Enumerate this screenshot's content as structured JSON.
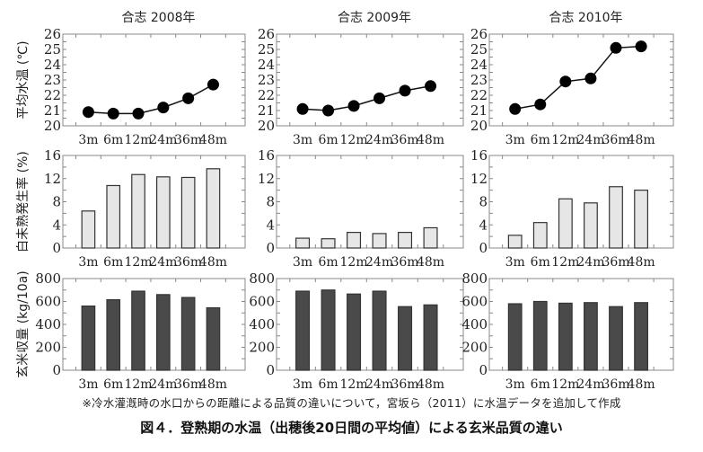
{
  "figure": {
    "note": "※冷水灌漑時の水口からの距離による品質の違いについて，宮坂ら（2011）に水温データを追加して作成",
    "caption": "図４．登熟期の水温（出穂後20日間の平均値）による玄米品質の違い"
  },
  "colors": {
    "line": "#111111",
    "marker": "#000000",
    "bar_light": "#e6e6e6",
    "bar_dark": "#4a4a4a",
    "axis": "#888888"
  },
  "chart_data": [
    {
      "type": "line",
      "title": "合志  2008年",
      "row": "water_temp",
      "ylabel": "平均水温 (℃)",
      "categories": [
        "3m",
        "6m",
        "12m",
        "24m",
        "36m",
        "48m"
      ],
      "values": [
        20.9,
        20.8,
        20.8,
        21.2,
        21.8,
        22.7
      ],
      "ylim": [
        20,
        26
      ],
      "yticks": [
        20,
        21,
        22,
        23,
        24,
        25,
        26
      ]
    },
    {
      "type": "line",
      "title": "合志  2009年",
      "row": "water_temp",
      "ylabel": "",
      "categories": [
        "3m",
        "6m",
        "12m",
        "24m",
        "36m",
        "48m"
      ],
      "values": [
        21.1,
        21.0,
        21.3,
        21.8,
        22.3,
        22.6
      ],
      "ylim": [
        20,
        26
      ],
      "yticks": [
        20,
        21,
        22,
        23,
        24,
        25,
        26
      ]
    },
    {
      "type": "line",
      "title": "合志  2010年",
      "row": "water_temp",
      "ylabel": "",
      "categories": [
        "3m",
        "6m",
        "12m",
        "24m",
        "36m",
        "48m"
      ],
      "values": [
        21.1,
        21.4,
        22.9,
        23.1,
        25.1,
        25.2
      ],
      "ylim": [
        20,
        26
      ],
      "yticks": [
        20,
        21,
        22,
        23,
        24,
        25,
        26
      ]
    },
    {
      "type": "bar",
      "title": "",
      "row": "white_immature",
      "ylabel": "白未熟発生率 (%)",
      "categories": [
        "3m",
        "6m",
        "12m",
        "24m",
        "36m",
        "48m"
      ],
      "values": [
        6.4,
        10.8,
        12.7,
        12.3,
        12.2,
        13.7
      ],
      "ylim": [
        0,
        16
      ],
      "yticks": [
        0,
        4,
        8,
        12,
        16
      ]
    },
    {
      "type": "bar",
      "title": "",
      "row": "white_immature",
      "ylabel": "",
      "categories": [
        "3m",
        "6m",
        "12m",
        "24m",
        "36m",
        "48m"
      ],
      "values": [
        1.7,
        1.6,
        2.7,
        2.5,
        2.7,
        3.5
      ],
      "ylim": [
        0,
        16
      ],
      "yticks": [
        0,
        4,
        8,
        12,
        16
      ]
    },
    {
      "type": "bar",
      "title": "",
      "row": "white_immature",
      "ylabel": "",
      "categories": [
        "3m",
        "6m",
        "12m",
        "24m",
        "36m",
        "48m"
      ],
      "values": [
        2.2,
        4.4,
        8.5,
        7.8,
        10.6,
        10.0
      ],
      "ylim": [
        0,
        16
      ],
      "yticks": [
        0,
        4,
        8,
        12,
        16
      ]
    },
    {
      "type": "bar",
      "title": "",
      "row": "yield",
      "ylabel": "玄米収量 (kg/10a)",
      "categories": [
        "3m",
        "6m",
        "12m",
        "24m",
        "36m",
        "48m"
      ],
      "values": [
        560,
        615,
        690,
        660,
        635,
        545
      ],
      "ylim": [
        0,
        800
      ],
      "yticks": [
        0,
        200,
        400,
        600,
        800
      ]
    },
    {
      "type": "bar",
      "title": "",
      "row": "yield",
      "ylabel": "",
      "categories": [
        "3m",
        "6m",
        "12m",
        "24m",
        "36m",
        "48m"
      ],
      "values": [
        690,
        700,
        665,
        690,
        555,
        570
      ],
      "ylim": [
        0,
        800
      ],
      "yticks": [
        0,
        200,
        400,
        600,
        800
      ]
    },
    {
      "type": "bar",
      "title": "",
      "row": "yield",
      "ylabel": "",
      "categories": [
        "3m",
        "6m",
        "12m",
        "24m",
        "36m",
        "48m"
      ],
      "values": [
        580,
        600,
        585,
        590,
        555,
        590
      ],
      "ylim": [
        0,
        800
      ],
      "yticks": [
        0,
        200,
        400,
        600,
        800
      ]
    }
  ]
}
